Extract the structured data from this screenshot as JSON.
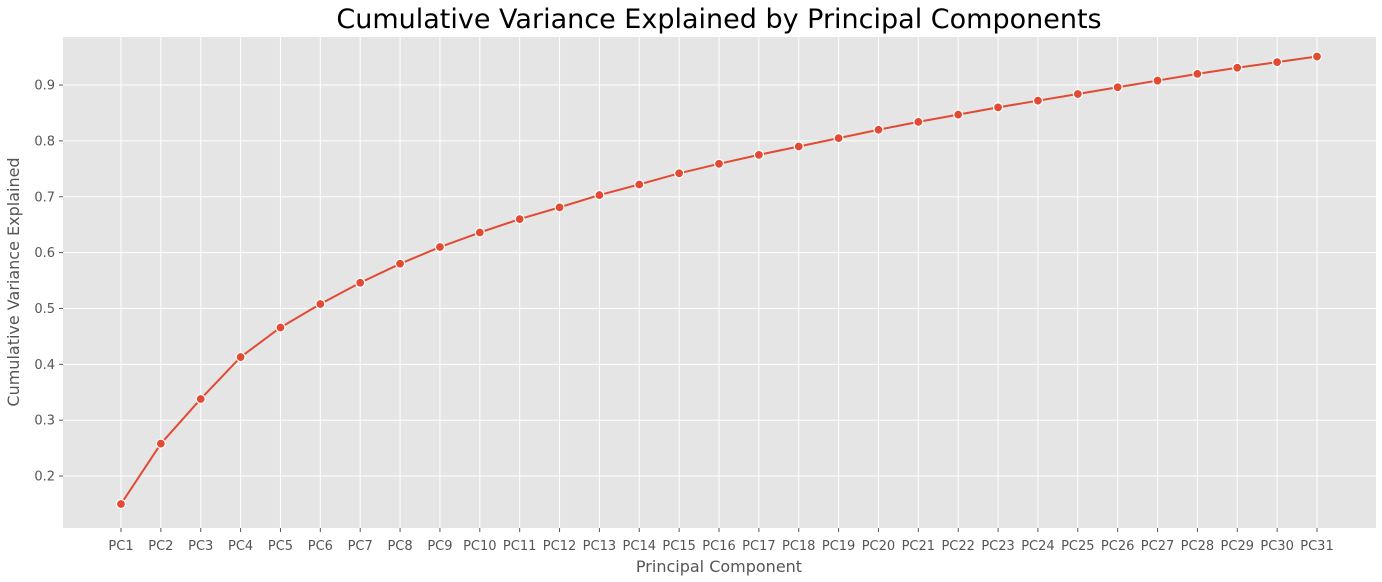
{
  "chart_data": {
    "type": "line",
    "title": "Cumulative Variance Explained by Principal Components",
    "xlabel": "Principal Component",
    "ylabel": "Cumulative Variance Explained",
    "categories": [
      "PC1",
      "PC2",
      "PC3",
      "PC4",
      "PC5",
      "PC6",
      "PC7",
      "PC8",
      "PC9",
      "PC10",
      "PC11",
      "PC12",
      "PC13",
      "PC14",
      "PC15",
      "PC16",
      "PC17",
      "PC18",
      "PC19",
      "PC20",
      "PC21",
      "PC22",
      "PC23",
      "PC24",
      "PC25",
      "PC26",
      "PC27",
      "PC28",
      "PC29",
      "PC30",
      "PC31"
    ],
    "values": [
      0.15,
      0.258,
      0.338,
      0.413,
      0.466,
      0.508,
      0.546,
      0.58,
      0.61,
      0.636,
      0.66,
      0.681,
      0.703,
      0.722,
      0.742,
      0.759,
      0.775,
      0.79,
      0.805,
      0.82,
      0.834,
      0.847,
      0.86,
      0.872,
      0.884,
      0.896,
      0.908,
      0.92,
      0.931,
      0.941,
      0.951
    ],
    "ylim": [
      0.107,
      0.986
    ],
    "yticks": [
      "0.2",
      "0.3",
      "0.4",
      "0.5",
      "0.6",
      "0.7",
      "0.8",
      "0.9"
    ],
    "ytick_values": [
      0.2,
      0.3,
      0.4,
      0.5,
      0.6,
      0.7,
      0.8,
      0.9
    ],
    "grid": true,
    "line_color": "#e24a33",
    "marker_edge_color": "#ffffff",
    "background_color": "#e5e5e5"
  }
}
